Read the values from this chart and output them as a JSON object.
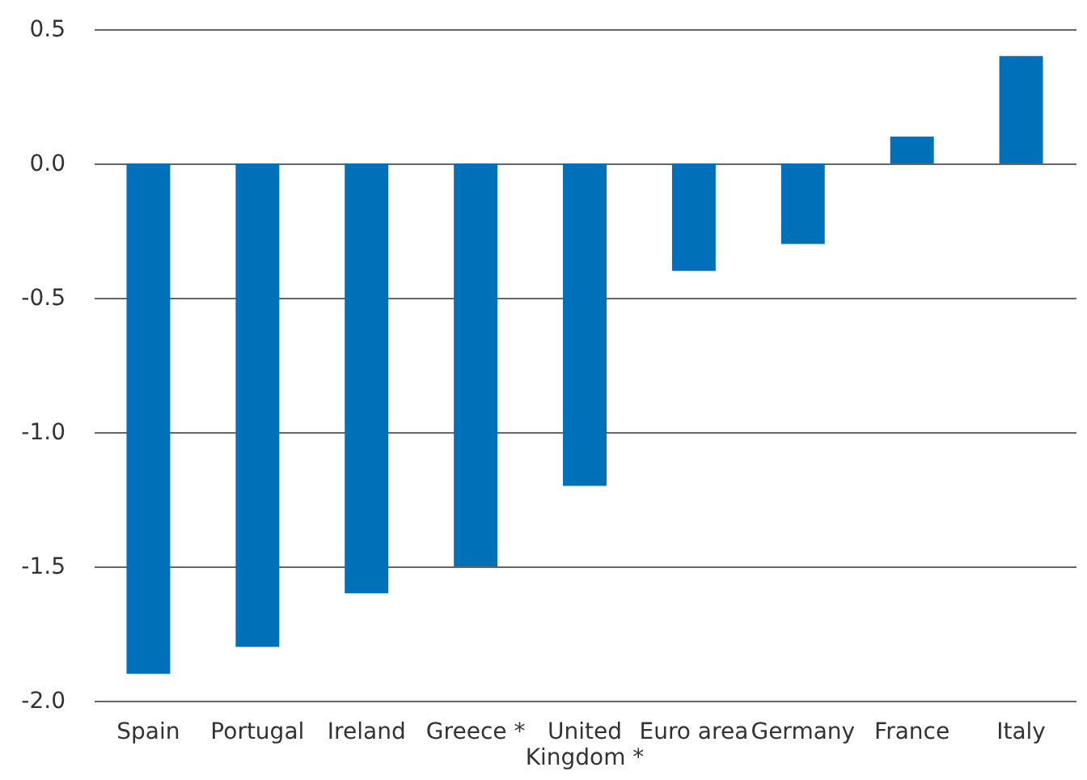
{
  "chart_data": {
    "type": "bar",
    "categories": [
      "Spain",
      "Portugal",
      "Ireland",
      "Greece *",
      "United Kingdom *",
      "Euro area",
      "Germany",
      "France",
      "Italy"
    ],
    "values": [
      -1.9,
      -1.8,
      -1.6,
      -1.5,
      -1.2,
      -0.4,
      -0.3,
      0.1,
      0.4
    ],
    "color": "#0070b8",
    "ylim": [
      -2.0,
      0.5
    ],
    "yticks": [
      {
        "value": -2.0,
        "label": "-2.0"
      },
      {
        "value": -1.5,
        "label": "-1.5"
      },
      {
        "value": -1.0,
        "label": "-1.0"
      },
      {
        "value": -0.5,
        "label": "-0.5"
      },
      {
        "value": 0,
        "label": "0.0"
      },
      {
        "value": 0.5,
        "label": "0.5"
      }
    ],
    "grid": "y"
  }
}
